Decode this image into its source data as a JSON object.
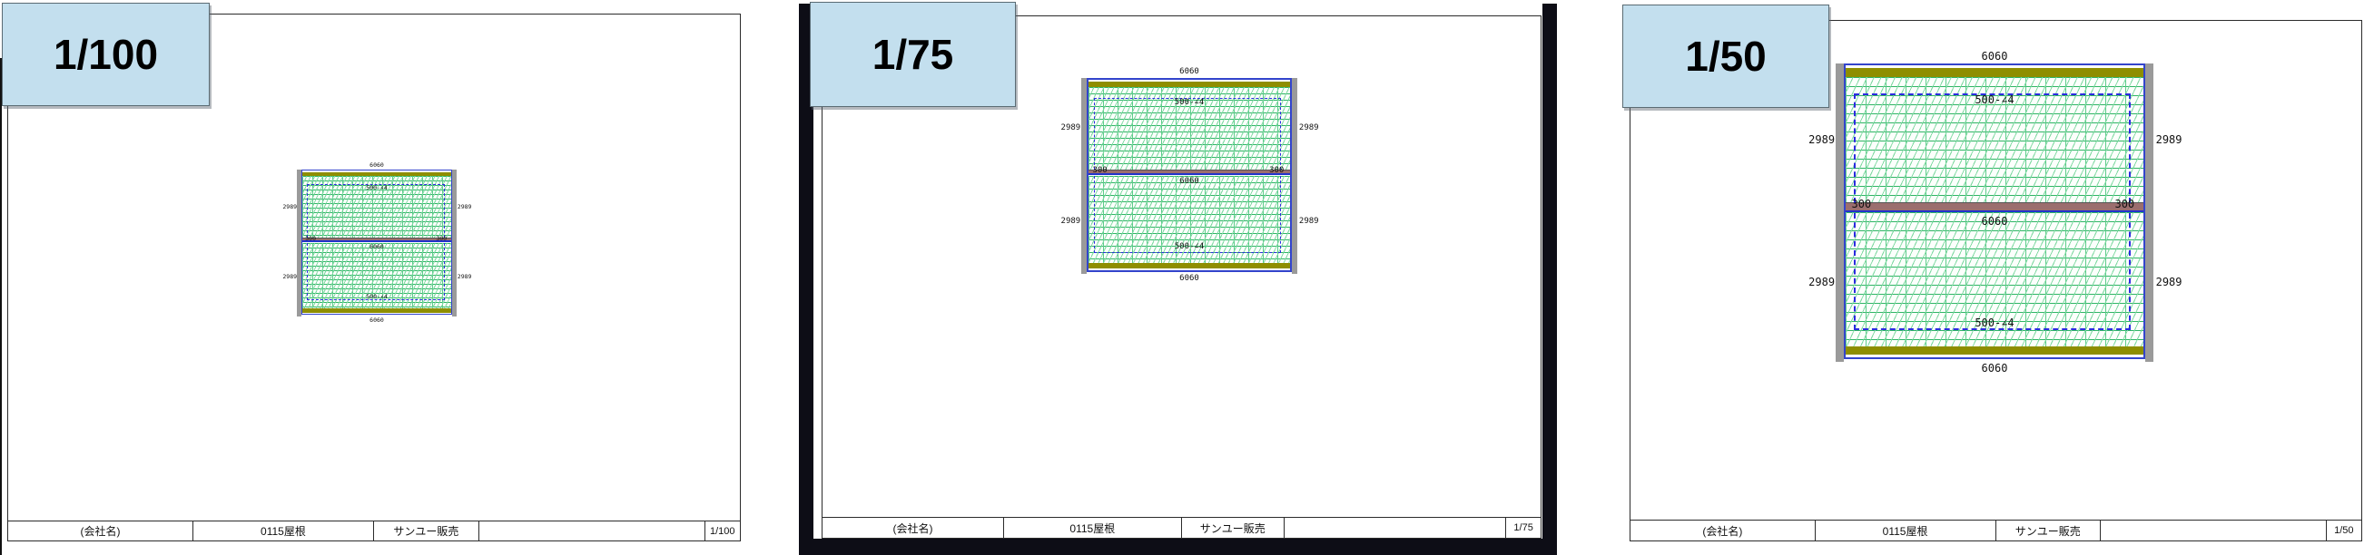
{
  "colors": {
    "scale_badge_fill": "#c3dfee",
    "plan_border_blue": "#3344cc",
    "coverage_dash_blue": "#2b2be0",
    "eave_strip_olive": "#8e8e00",
    "ridge_bar_mauve": "#9b6e6e",
    "hatch_green": "#2fb565",
    "side_strip_gray": "#9a9a9a",
    "viewport_band_dark": "#0d0d16"
  },
  "panels": [
    {
      "scale_label": "1/100",
      "drawing": {
        "dim_top": "6060",
        "dim_bottom": "6060",
        "dim_mid": "6060",
        "dim_left_upper": "2989",
        "dim_left_lower": "2989",
        "dim_right_upper": "2989",
        "dim_right_lower": "2989",
        "bar_left": "300",
        "bar_right": "300",
        "panel_label_top": "500-∠4",
        "panel_label_bottom": "500-∠4"
      },
      "title_block": {
        "company": "(会社名)",
        "project": "0115屋根",
        "vendor": "サンユー販売",
        "note": "",
        "scale": "1/100"
      }
    },
    {
      "scale_label": "1/75",
      "drawing": {
        "dim_top": "6060",
        "dim_bottom": "6060",
        "dim_mid": "6060",
        "dim_left_upper": "2989",
        "dim_left_lower": "2989",
        "dim_right_upper": "2989",
        "dim_right_lower": "2989",
        "bar_left": "300",
        "bar_right": "300",
        "panel_label_top": "500-∠4",
        "panel_label_bottom": "500-∠4"
      },
      "title_block": {
        "company": "(会社名)",
        "project": "0115屋根",
        "vendor": "サンユー販売",
        "note": "",
        "scale": "1/75"
      }
    },
    {
      "scale_label": "1/50",
      "drawing": {
        "dim_top": "6060",
        "dim_bottom": "6060",
        "dim_mid": "6060",
        "dim_left_upper": "2989",
        "dim_left_lower": "2989",
        "dim_right_upper": "2989",
        "dim_right_lower": "2989",
        "bar_left": "300",
        "bar_right": "300",
        "panel_label_top": "500-∠4",
        "panel_label_bottom": "500-∠4"
      },
      "title_block": {
        "company": "(会社名)",
        "project": "0115屋根",
        "vendor": "サンユー販売",
        "note": "",
        "scale": "1/50"
      }
    }
  ]
}
